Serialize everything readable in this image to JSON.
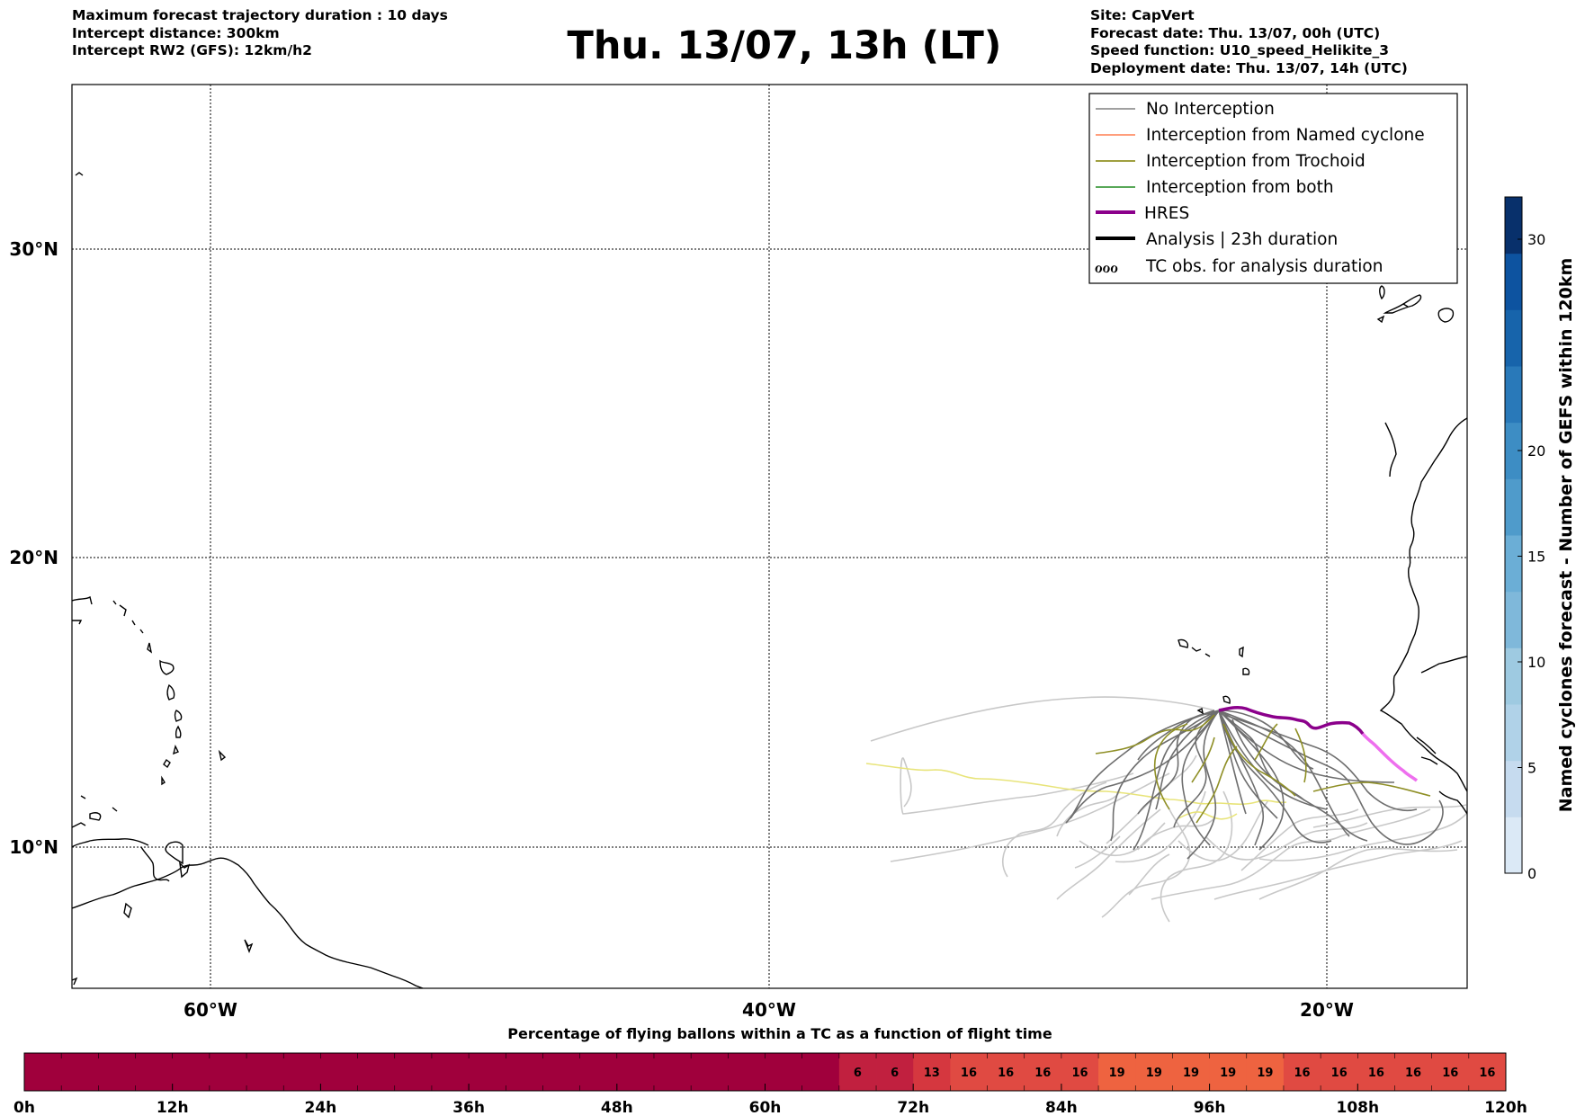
{
  "header": {
    "left": [
      "Maximum forecast trajectory duration : 10 days",
      "Intercept distance: 300km",
      "Intercept RW2 (GFS):  12km/h2"
    ],
    "title": "Thu. 13/07, 13h (LT)",
    "right": [
      "Site: CapVert",
      "Forecast date: Thu. 13/07, 00h (UTC)",
      "Speed function: U10_speed_Helikite_3",
      "Deployment date: Thu. 13/07, 14h (UTC)"
    ]
  },
  "map": {
    "lon_range": [
      -65,
      -15
    ],
    "lat_range": [
      5.4,
      34.7
    ],
    "lon_ticks": [
      {
        "lon": -60,
        "label": "60°W"
      },
      {
        "lon": -40,
        "label": "40°W"
      },
      {
        "lon": -20,
        "label": "20°W"
      }
    ],
    "lat_ticks": [
      {
        "lat": 30,
        "label": "30°N"
      },
      {
        "lat": 20,
        "label": "20°N"
      },
      {
        "lat": 10,
        "label": "10°N"
      }
    ],
    "grid": true
  },
  "legend": {
    "placement": "top-right",
    "items": [
      {
        "label": "No Interception",
        "color": "#808080",
        "style": "thin"
      },
      {
        "label": "Interception from Named cyclone",
        "color": "#ff7f50",
        "style": "thin"
      },
      {
        "label": "Interception from Trochoid",
        "color": "#808000",
        "style": "thin"
      },
      {
        "label": "Interception from both",
        "color": "#228b22",
        "style": "thin"
      },
      {
        "label": "HRES",
        "color": "#8b008b",
        "style": "thick"
      },
      {
        "label": "Analysis | 23h duration",
        "color": "#000000",
        "style": "thick"
      },
      {
        "label": "TC obs. for analysis duration",
        "color": "#000000",
        "style": "symbol",
        "symbol": "ℴℴℴ"
      }
    ]
  },
  "colorbar_right": {
    "label": "Named cyclones forecast - Number of GEFS within 120km",
    "range": [
      0,
      32
    ],
    "ticks": [
      0,
      5,
      10,
      15,
      20,
      30
    ],
    "colors": [
      "#dbe9f6",
      "#c6dbef",
      "#b0d2e8",
      "#9ecae1",
      "#7fb8da",
      "#6baed6",
      "#4f9bcb",
      "#3d8dc4",
      "#2979b9",
      "#1764ab",
      "#0d53a0",
      "#08306b"
    ]
  },
  "timebar": {
    "title": "Percentage of flying ballons within a TC as a function of flight time",
    "tick_labels": [
      "0h",
      "12h",
      "24h",
      "36h",
      "48h",
      "60h",
      "72h",
      "84h",
      "96h",
      "108h",
      "120h"
    ],
    "cell_hours": 3,
    "cells": [
      {
        "start_h": 0,
        "end_h": 66,
        "value": null,
        "color": "#a0003c"
      },
      {
        "start_h": 66,
        "end_h": 69,
        "value": "6",
        "color": "#c1203f"
      },
      {
        "start_h": 69,
        "end_h": 72,
        "value": "6",
        "color": "#c1203f"
      },
      {
        "start_h": 72,
        "end_h": 75,
        "value": "13",
        "color": "#d5373f"
      },
      {
        "start_h": 75,
        "end_h": 78,
        "value": "16",
        "color": "#e04a42"
      },
      {
        "start_h": 78,
        "end_h": 81,
        "value": "16",
        "color": "#e04a42"
      },
      {
        "start_h": 81,
        "end_h": 84,
        "value": "16",
        "color": "#e04a42"
      },
      {
        "start_h": 84,
        "end_h": 87,
        "value": "16",
        "color": "#e04a42"
      },
      {
        "start_h": 87,
        "end_h": 90,
        "value": "19",
        "color": "#ee6340"
      },
      {
        "start_h": 90,
        "end_h": 93,
        "value": "19",
        "color": "#ee6340"
      },
      {
        "start_h": 93,
        "end_h": 96,
        "value": "19",
        "color": "#ee6340"
      },
      {
        "start_h": 96,
        "end_h": 99,
        "value": "19",
        "color": "#ee6340"
      },
      {
        "start_h": 99,
        "end_h": 102,
        "value": "19",
        "color": "#ee6340"
      },
      {
        "start_h": 102,
        "end_h": 105,
        "value": "16",
        "color": "#e04a42"
      },
      {
        "start_h": 105,
        "end_h": 108,
        "value": "16",
        "color": "#e04a42"
      },
      {
        "start_h": 108,
        "end_h": 111,
        "value": "16",
        "color": "#e04a42"
      },
      {
        "start_h": 111,
        "end_h": 114,
        "value": "16",
        "color": "#e04a42"
      },
      {
        "start_h": 114,
        "end_h": 117,
        "value": "16",
        "color": "#e04a42"
      },
      {
        "start_h": 117,
        "end_h": 120,
        "value": "16",
        "color": "#e04a42"
      }
    ]
  }
}
